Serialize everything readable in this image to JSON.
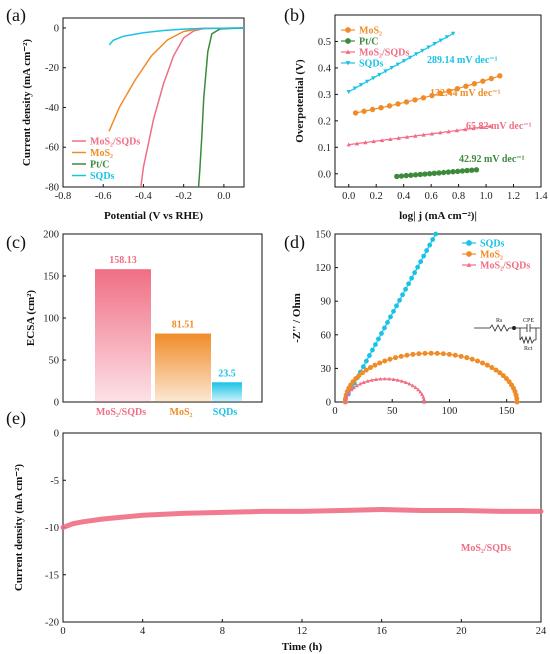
{
  "colors": {
    "mos2_sqds": "#f06e84",
    "mos2": "#f08c28",
    "ptc": "#3c8a3c",
    "sqds": "#19c3e6",
    "axis": "#111111"
  },
  "panels": {
    "a": {
      "label": "(a)",
      "xlabel": "Potential (V vs RHE)",
      "ylabel": "Current density (mA cm⁻²)"
    },
    "b": {
      "label": "(b)",
      "xlabel": "log| j (mA cm⁻²)|",
      "ylabel": "Overpotential (V)"
    },
    "c": {
      "label": "(c)",
      "xlabel": "",
      "ylabel": "ECSA (cm²)"
    },
    "d": {
      "label": "(d)",
      "xlabel": "Z' / Ohm",
      "ylabel": "-Z'' / Ohm"
    },
    "e": {
      "label": "(e)",
      "xlabel": "Time (h)",
      "ylabel": "Current density (mA cm⁻²)"
    }
  },
  "chart_data": [
    {
      "id": "a",
      "type": "line",
      "xlabel": "Potential (V vs RHE)",
      "ylabel": "Current density (mA cm-2)",
      "xlim": [
        -0.8,
        0.1
      ],
      "ylim": [
        -80,
        5
      ],
      "xticks": [
        -0.8,
        -0.6,
        -0.4,
        -0.2,
        0.0
      ],
      "xtick_labels": [
        "-0.8",
        "-0.6",
        "-0.4",
        "-0.2",
        "0.0"
      ],
      "yticks": [
        0,
        -20,
        -40,
        -60,
        -80
      ],
      "ytick_labels": [
        "0",
        "-20",
        "-40",
        "-60",
        "-80"
      ],
      "legend_position": "bottom-left",
      "series": [
        {
          "name": "MoS₂/SQDs",
          "key": "mos2_sqds",
          "x": [
            0.1,
            -0.1,
            -0.15,
            -0.2,
            -0.25,
            -0.3,
            -0.35,
            -0.4,
            -0.413
          ],
          "y": [
            0,
            -0.3,
            -1.5,
            -5,
            -14,
            -28,
            -46,
            -70,
            -80
          ]
        },
        {
          "name": "MoS₂",
          "key": "mos2",
          "x": [
            0.1,
            -0.12,
            -0.2,
            -0.28,
            -0.36,
            -0.44,
            -0.52,
            -0.571
          ],
          "y": [
            0,
            -0.3,
            -1.8,
            -6,
            -14,
            -26,
            -40,
            -52
          ]
        },
        {
          "name": "Pt/C",
          "key": "ptc",
          "x": [
            0.1,
            -0.02,
            -0.06,
            -0.08,
            -0.1,
            -0.11,
            -0.12,
            -0.126
          ],
          "y": [
            0,
            -0.5,
            -3,
            -12,
            -35,
            -55,
            -72,
            -80
          ]
        },
        {
          "name": "SQDs",
          "key": "sqds",
          "x": [
            0.1,
            -0.1,
            -0.2,
            -0.3,
            -0.4,
            -0.5,
            -0.55,
            -0.57
          ],
          "y": [
            0,
            -0.2,
            -0.6,
            -1.3,
            -2.4,
            -4.2,
            -6.2,
            -8.5
          ]
        }
      ]
    },
    {
      "id": "b",
      "type": "line",
      "xlabel": "log| j (mA cm-2)|",
      "ylabel": "Overpotential (V)",
      "xlim": [
        -0.1,
        1.4
      ],
      "ylim": [
        -0.05,
        0.6
      ],
      "xticks": [
        0.0,
        0.2,
        0.4,
        0.6,
        0.8,
        1.0,
        1.2,
        1.4
      ],
      "xtick_labels": [
        "0.0",
        "0.2",
        "0.4",
        "0.6",
        "0.8",
        "1.0",
        "1.2",
        "1.4"
      ],
      "yticks": [
        0.0,
        0.1,
        0.2,
        0.3,
        0.4,
        0.5
      ],
      "ytick_labels": [
        "0.0",
        "0.1",
        "0.2",
        "0.3",
        "0.4",
        "0.5"
      ],
      "legend_position": "top-left",
      "series": [
        {
          "name": "MoS₂",
          "key": "mos2",
          "marker": "circle",
          "x0": 0.05,
          "x1": 1.1,
          "y0": 0.23,
          "y1": 0.37,
          "tafel": "132.44 mV dec⁻¹"
        },
        {
          "name": "Pt/C",
          "key": "ptc",
          "marker": "circle",
          "x0": 0.35,
          "x1": 0.93,
          "y0": -0.01,
          "y1": 0.015,
          "tafel": "42.92 mV dec⁻¹"
        },
        {
          "name": "MoS₂/SQDs",
          "key": "mos2_sqds",
          "marker": "triangle-up",
          "x0": 0.0,
          "x1": 1.03,
          "y0": 0.11,
          "y1": 0.18,
          "tafel": "65.82 mV dec⁻¹"
        },
        {
          "name": "SQDs",
          "key": "sqds",
          "marker": "triangle-down",
          "x0": 0.0,
          "x1": 0.76,
          "y0": 0.31,
          "y1": 0.53,
          "tafel": "289.14 mV dec⁻¹"
        }
      ]
    },
    {
      "id": "c",
      "type": "bar",
      "ylabel": "ECSA (cm²)",
      "ylim": [
        0,
        200
      ],
      "yticks": [
        0,
        50,
        100,
        150,
        200
      ],
      "ytick_labels": [
        "0",
        "50",
        "100",
        "150",
        "200"
      ],
      "categories": [
        "MoS₂/SQDs",
        "MoS₂",
        "SQDs"
      ],
      "values": [
        158.13,
        81.51,
        23.5
      ],
      "value_labels": [
        "158.13",
        "81.51",
        "23.5"
      ],
      "keys": [
        "mos2_sqds",
        "mos2",
        "sqds"
      ]
    },
    {
      "id": "d",
      "type": "scatter",
      "xlabel": "Z' / Ohm",
      "ylabel": "-Z'' / Ohm",
      "xlim": [
        0,
        180
      ],
      "ylim": [
        0,
        150
      ],
      "xticks": [
        0,
        50,
        100,
        150
      ],
      "xtick_labels": [
        "0",
        "50",
        "100",
        "150"
      ],
      "yticks": [
        0,
        30,
        60,
        90,
        120,
        150
      ],
      "ytick_labels": [
        "0",
        "30",
        "60",
        "90",
        "120",
        "150"
      ],
      "legend_position": "top-right",
      "inset": {
        "labels": [
          "Rs",
          "CPE",
          "Rct"
        ]
      },
      "series": [
        {
          "name": "SQDs",
          "key": "sqds",
          "marker": "circle",
          "shape": "line",
          "x0": 9,
          "x1": 88,
          "y0": 2,
          "y1": 150
        },
        {
          "name": "MoS₂",
          "key": "mos2",
          "marker": "circle",
          "shape": "arc",
          "rs": 9,
          "rct": 150,
          "depression": 0.58
        },
        {
          "name": "MoS₂/SQDs",
          "key": "mos2_sqds",
          "marker": "triangle-up",
          "shape": "arc",
          "rs": 9,
          "rct": 69,
          "depression": 0.6
        }
      ]
    },
    {
      "id": "e",
      "type": "line",
      "xlabel": "Time (h)",
      "ylabel": "Current density (mA cm-2)",
      "xlim": [
        0,
        24
      ],
      "ylim": [
        -20,
        0
      ],
      "xticks": [
        0,
        4,
        8,
        12,
        16,
        20,
        24
      ],
      "xtick_labels": [
        "0",
        "4",
        "8",
        "12",
        "16",
        "20",
        "24"
      ],
      "yticks": [
        0,
        -5,
        -10,
        -15,
        -20
      ],
      "ytick_labels": [
        "0",
        "-5",
        "-10",
        "-15",
        "-20"
      ],
      "annotation": "MoS₂/SQDs",
      "series": [
        {
          "name": "MoS₂/SQDs",
          "key": "mos2_sqds",
          "x": [
            0,
            0.5,
            1,
            2,
            3,
            4,
            6,
            8,
            10,
            12,
            14,
            16,
            18,
            20,
            22,
            24
          ],
          "y": [
            -10.0,
            -9.6,
            -9.4,
            -9.1,
            -8.9,
            -8.7,
            -8.5,
            -8.4,
            -8.3,
            -8.3,
            -8.2,
            -8.1,
            -8.2,
            -8.2,
            -8.3,
            -8.3
          ]
        }
      ]
    }
  ]
}
